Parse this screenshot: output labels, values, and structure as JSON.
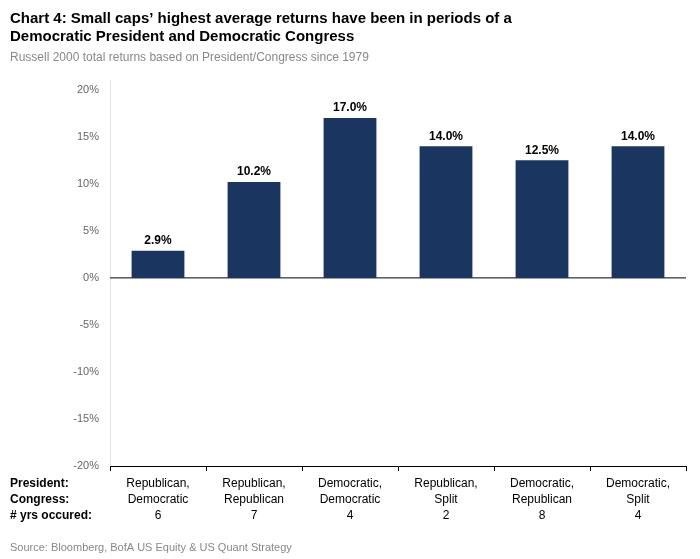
{
  "chart_data": {
    "type": "bar",
    "title": [
      "Chart 4: Small caps’ highest average returns have been in periods of a",
      "Democratic President and Democratic Congress"
    ],
    "subtitle": "Russell 2000 total returns based on President/Congress since 1979",
    "source": "Source: Bloomberg, BofA US Equity & US Quant Strategy",
    "row_labels": [
      "President:",
      "Congress:",
      "# yrs occured:"
    ],
    "categories": [
      [
        "Republican,",
        "Democratic",
        "6"
      ],
      [
        "Republican,",
        "Republican",
        "7"
      ],
      [
        "Democratic,",
        "Democratic",
        "4"
      ],
      [
        "Republican,",
        "Split",
        "2"
      ],
      [
        "Democratic,",
        "Republican",
        "8"
      ],
      [
        "Democratic,",
        "Split",
        "4"
      ]
    ],
    "values": [
      2.9,
      10.2,
      17.0,
      14.0,
      12.5,
      14.0
    ],
    "value_labels": [
      "2.9%",
      "10.2%",
      "17.0%",
      "14.0%",
      "12.5%",
      "14.0%"
    ],
    "data_labels": true,
    "color": "#1a3560",
    "ylim": [
      -20,
      21
    ],
    "yticks": [
      {
        "value": -20,
        "label": "-20%"
      },
      {
        "value": -15,
        "label": "-15%"
      },
      {
        "value": -10,
        "label": "-10%"
      },
      {
        "value": -5,
        "label": "-5%"
      },
      {
        "value": 0,
        "label": "0%"
      },
      {
        "value": 5,
        "label": "5%"
      },
      {
        "value": 10,
        "label": "10%"
      },
      {
        "value": 15,
        "label": "15%"
      },
      {
        "value": 20,
        "label": "20%"
      }
    ],
    "grid": false
  }
}
